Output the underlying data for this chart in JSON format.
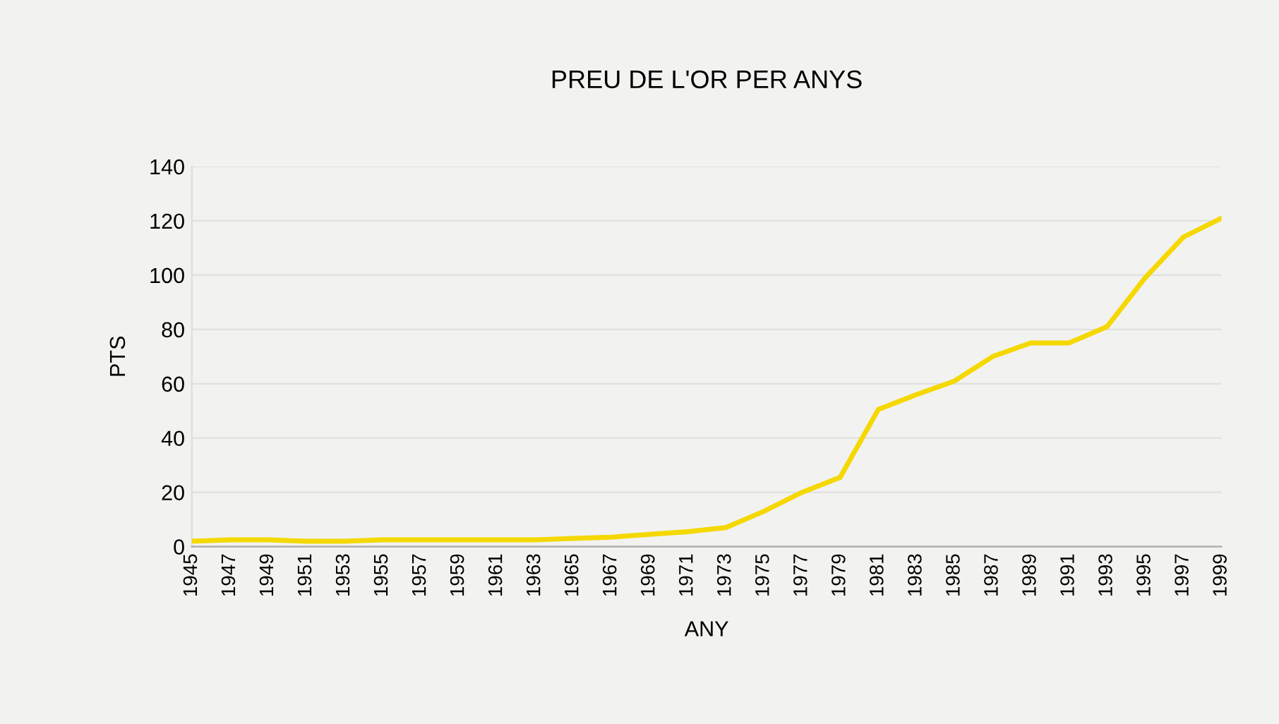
{
  "chart_data": {
    "type": "line",
    "title": "PREU DE L'OR PER ANYS",
    "xlabel": "ANY",
    "ylabel": "PTS",
    "x": [
      1945,
      1947,
      1949,
      1951,
      1953,
      1955,
      1957,
      1959,
      1961,
      1963,
      1965,
      1967,
      1969,
      1971,
      1973,
      1975,
      1977,
      1979,
      1981,
      1983,
      1985,
      1987,
      1989,
      1991,
      1993,
      1995,
      1997,
      1999
    ],
    "series": [
      {
        "color": "#f5d800",
        "values": [
          2,
          2.5,
          2.5,
          2,
          2,
          2.5,
          2.5,
          2.5,
          2.5,
          2.5,
          3,
          3.5,
          4.5,
          5.5,
          7,
          13,
          20,
          25.5,
          50.5,
          56,
          61,
          70,
          75,
          75,
          81,
          99,
          114,
          121
        ]
      }
    ],
    "xlim": [
      1945,
      1999
    ],
    "xticks": [
      1945,
      1947,
      1949,
      1951,
      1953,
      1955,
      1957,
      1959,
      1961,
      1963,
      1965,
      1967,
      1969,
      1971,
      1973,
      1975,
      1977,
      1979,
      1981,
      1983,
      1985,
      1987,
      1989,
      1991,
      1993,
      1995,
      1997,
      1999
    ],
    "ylim": [
      0,
      140
    ],
    "yticks": [
      0,
      20,
      40,
      60,
      80,
      100,
      120,
      140
    ],
    "grid": "y",
    "marker": "none",
    "line_style": "solid"
  }
}
